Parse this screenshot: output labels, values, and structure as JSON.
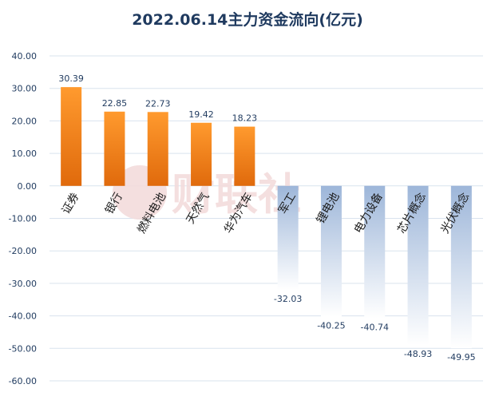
{
  "chart_data": {
    "type": "bar",
    "title": "2022.06.14主力资金流向(亿元)",
    "xlabel": "",
    "ylabel": "",
    "categories": [
      "证券",
      "银行",
      "燃料电池",
      "天然气",
      "华为汽车",
      "军工",
      "锂电池",
      "电力设备",
      "芯片概念",
      "光伏概念"
    ],
    "values": [
      30.39,
      22.85,
      22.73,
      19.42,
      18.23,
      -32.03,
      -40.25,
      -40.74,
      -48.93,
      -49.95
    ],
    "ylim": [
      -60,
      40
    ],
    "yticks": [
      "40.00",
      "30.00",
      "20.00",
      "10.00",
      "0.00",
      "-10.00",
      "-20.00",
      "-30.00",
      "-40.00",
      "-50.00",
      "-60.00"
    ],
    "data_labels": [
      "30.39",
      "22.85",
      "22.73",
      "19.42",
      "18.23",
      "-32.03",
      "-40.25",
      "-40.74",
      "-48.93",
      "-49.95"
    ],
    "grid": true,
    "legend": "none",
    "colors": {
      "positive_top": "#ff9a2e",
      "positive_bottom": "#e06a0c",
      "negative_top": "#9db6d9",
      "negative_bottom": "#ffffff",
      "grid": "#d9e3ee",
      "text": "#1f3a5f"
    },
    "watermark": "财联社"
  }
}
